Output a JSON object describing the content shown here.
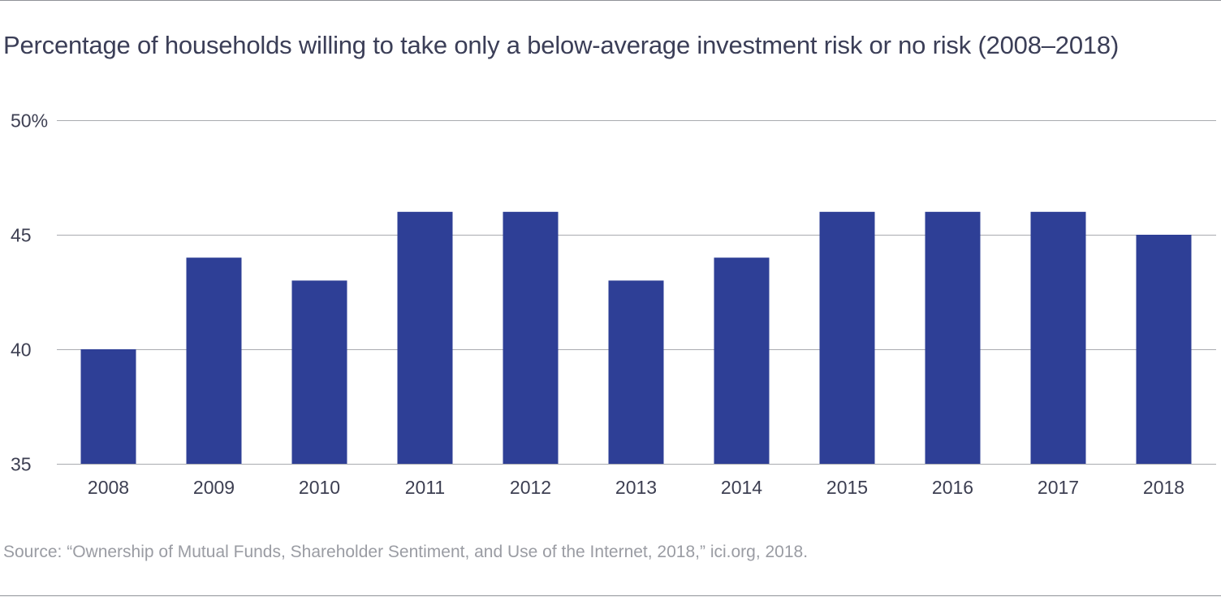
{
  "chart_data": {
    "type": "bar",
    "title": "Percentage of households willing to take only a below-average investment risk or no risk (2008–2018)",
    "categories": [
      "2008",
      "2009",
      "2010",
      "2011",
      "2012",
      "2013",
      "2014",
      "2015",
      "2016",
      "2017",
      "2018"
    ],
    "series": [
      {
        "name": "Households willing to take only a below-average investment risk or no risk",
        "values": [
          40,
          44,
          43,
          46,
          46,
          43,
          44,
          46,
          46,
          46,
          45
        ]
      }
    ],
    "xlabel": "",
    "ylabel": "",
    "ylim": [
      35,
      50
    ],
    "yticks": [
      35,
      40,
      45,
      50
    ],
    "ytick_labels": [
      "35",
      "40",
      "45",
      "50%"
    ],
    "grid": true,
    "legend": "none",
    "bar_color": "#2e3f96",
    "grid_color": "#a9abb0",
    "tick_label_color": "#3d3f52"
  },
  "source": "Source: “Ownership of Mutual Funds, Shareholder Sentiment, and Use of the Internet, 2018,” ici.org, 2018."
}
